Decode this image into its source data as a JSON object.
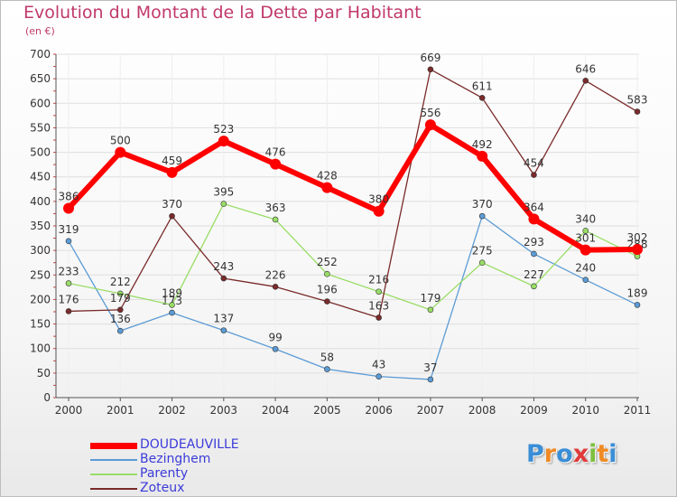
{
  "title": "Evolution du Montant de la Dette par Habitant",
  "subtitle": "(en €)",
  "logo": {
    "letters": [
      "P",
      "r",
      "o",
      "x",
      "i",
      "t",
      "i"
    ],
    "colors": [
      "#3a8ed6",
      "#f08a24",
      "#3a8ed6",
      "#e13a3a",
      "#7fbf3f",
      "#f08a24",
      "#3a8ed6"
    ]
  },
  "chart_data": {
    "type": "line",
    "title": "Evolution du Montant de la Dette par Habitant",
    "ylabel": "(en €)",
    "xlabel": "",
    "x": [
      "2000",
      "2001",
      "2002",
      "2003",
      "2004",
      "2005",
      "2006",
      "2007",
      "2008",
      "2009",
      "2010",
      "2011"
    ],
    "ylim": [
      0,
      700
    ],
    "yticks": [
      0,
      50,
      100,
      150,
      200,
      250,
      300,
      350,
      400,
      450,
      500,
      550,
      600,
      650,
      700
    ],
    "grid": "horizontal",
    "legend": "bottom-left",
    "series": [
      {
        "name": "DOUDEAUVILLE",
        "color": "#ff0000",
        "values": [
          386,
          500,
          459,
          523,
          476,
          428,
          380,
          556,
          492,
          364,
          301,
          302
        ]
      },
      {
        "name": "Bezinghem",
        "color": "#5b9bd5",
        "values": [
          319,
          136,
          173,
          137,
          99,
          58,
          43,
          37,
          370,
          293,
          240,
          189
        ]
      },
      {
        "name": "Parenty",
        "color": "#99dd66",
        "values": [
          233,
          212,
          189,
          395,
          363,
          252,
          216,
          179,
          275,
          227,
          340,
          288
        ]
      },
      {
        "name": "Zoteux",
        "color": "#7a2a2a",
        "values": [
          176,
          179,
          370,
          243,
          226,
          196,
          163,
          669,
          611,
          454,
          646,
          583
        ]
      }
    ]
  }
}
